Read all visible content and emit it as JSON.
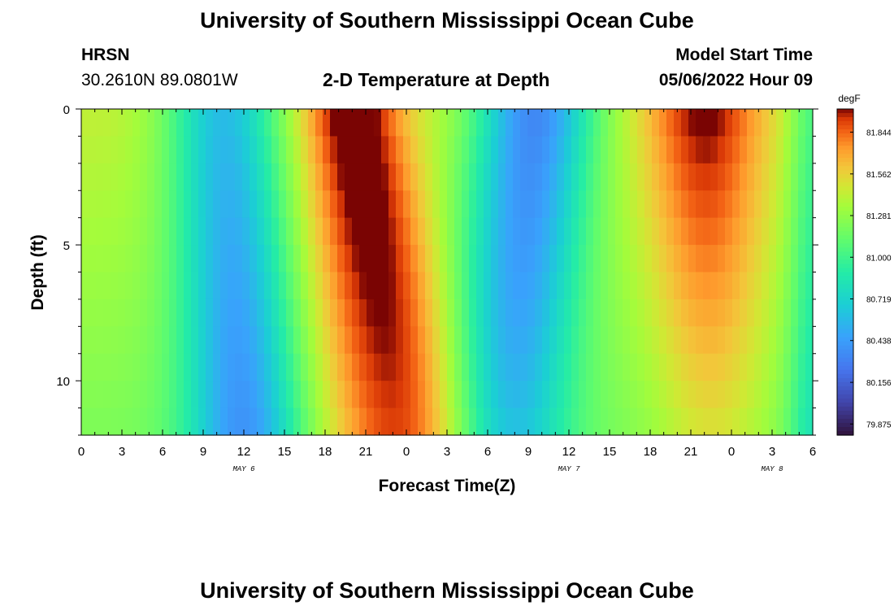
{
  "header": {
    "title": "University of Southern Mississippi Ocean Cube",
    "station": "HRSN",
    "coords": "30.2610N  89.0801W",
    "subtitle": "2-D Temperature at Depth",
    "model_label": "Model Start Time",
    "model_time": "05/06/2022 Hour 09"
  },
  "footer": {
    "title": "University of Southern Mississippi Ocean Cube"
  },
  "chart_data": {
    "type": "heatmap",
    "title": "2-D Temperature at Depth",
    "xlabel": "Forecast Time(Z)",
    "ylabel": "Depth (ft)",
    "x_tick_labels": [
      "0",
      "3",
      "6",
      "9",
      "12",
      "15",
      "18",
      "21",
      "0",
      "3",
      "6",
      "9",
      "12",
      "15",
      "18",
      "21",
      "0",
      "3",
      "6"
    ],
    "date_labels": [
      {
        "label": "MAY 6",
        "at_hour": 12
      },
      {
        "label": "MAY 7",
        "at_hour": 36
      },
      {
        "label": "MAY 8",
        "at_hour": 51
      }
    ],
    "x_range_hours": [
      0,
      54
    ],
    "y_ticks": [
      0,
      5,
      10
    ],
    "y_range": [
      0,
      12
    ],
    "colorbar": {
      "unit": "degF",
      "ticks": [
        "81.844",
        "81.562",
        "81.281",
        "81.000",
        "80.719",
        "80.438",
        "80.156",
        "79.875"
      ],
      "min": 79.8,
      "max": 82.0
    }
  }
}
